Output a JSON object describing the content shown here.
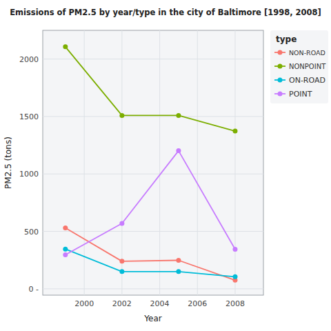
{
  "chart_data": {
    "type": "line",
    "title": "Emissions of PM2.5 by year/type in the city of Baltimore [1998, 2008]",
    "xlabel": "Year",
    "ylabel": "PM2.5 (tons)",
    "x": [
      1999,
      2002,
      2005,
      2008
    ],
    "series": [
      {
        "name": "NON-ROAD",
        "color": "#F8766D",
        "marker": "circle",
        "values": [
          530,
          240,
          248,
          75
        ]
      },
      {
        "name": "NONPOINT",
        "color": "#7CAE00",
        "marker": "circle",
        "values": [
          2107,
          1509,
          1509,
          1373
        ]
      },
      {
        "name": "ON-ROAD",
        "color": "#00BCD8",
        "marker": "circle",
        "values": [
          346,
          150,
          150,
          105
        ]
      },
      {
        "name": "POINT",
        "color": "#C77CFF",
        "marker": "circle",
        "values": [
          296,
          569,
          1202,
          344
        ]
      }
    ],
    "xlim": [
      1997.8,
      2009.5
    ],
    "ylim": [
      -55,
      2250
    ],
    "xticks": [
      2000,
      2002,
      2004,
      2006,
      2008
    ],
    "yticks": [
      {
        "value": 0,
        "label": "0 -"
      },
      500,
      1000,
      1500,
      2000
    ],
    "grid": true,
    "legend": "right",
    "legend_title": "type"
  }
}
